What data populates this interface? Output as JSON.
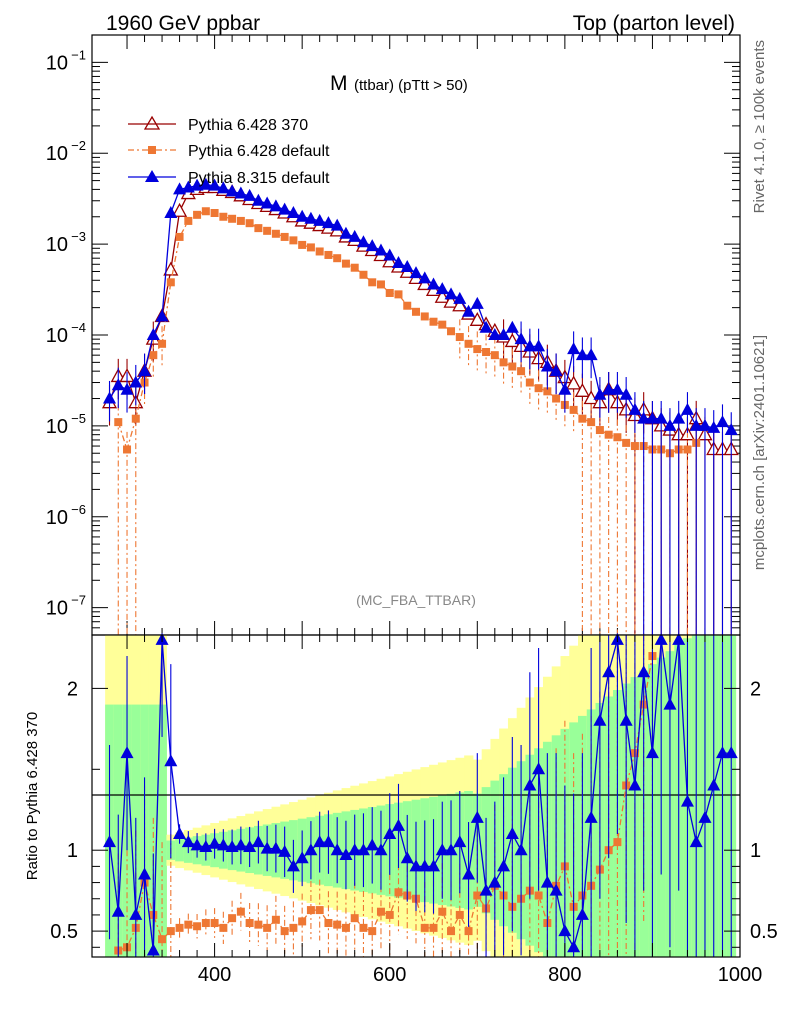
{
  "header": {
    "left": "1960 GeV ppbar",
    "right": "Top (parton level)"
  },
  "side_labels": {
    "top": "Rivet 4.1.0, ≥ 100k events",
    "bottom": "mcplots.cern.ch [arXiv:2401.10621]"
  },
  "chart_data": [
    {
      "type": "line",
      "title": "M",
      "subtitle": "(ttbar) (pTtt > 50)",
      "watermark": "(MC_FBA_TTBAR)",
      "xlabel": "",
      "ylabel": "",
      "yscale": "log",
      "xlim": [
        260,
        1000
      ],
      "ylim": [
        5e-08,
        0.2
      ],
      "ytick_labels": [
        "10^-1",
        "10^-2",
        "10^-3",
        "10^-4",
        "10^-5",
        "10^-6",
        "10^-7"
      ],
      "legend_position": "top-left",
      "series": [
        {
          "name": "Pythia 6.428 370",
          "color": "#990000",
          "marker": "open-triangle",
          "x": [
            280,
            290,
            300,
            310,
            320,
            330,
            340,
            350,
            360,
            370,
            380,
            390,
            400,
            410,
            420,
            430,
            440,
            450,
            460,
            470,
            480,
            490,
            500,
            510,
            520,
            530,
            540,
            550,
            560,
            570,
            580,
            590,
            600,
            610,
            620,
            630,
            640,
            650,
            660,
            670,
            680,
            690,
            700,
            710,
            720,
            730,
            740,
            750,
            760,
            770,
            780,
            790,
            800,
            810,
            820,
            830,
            840,
            850,
            860,
            870,
            880,
            890,
            900,
            910,
            920,
            930,
            940,
            950,
            960,
            970,
            980,
            990
          ],
          "y": [
            1.8e-05,
            3.5e-05,
            3.5e-05,
            1.8e-05,
            4e-05,
            9e-05,
            0.00016,
            0.00052,
            0.0023,
            0.0036,
            0.004,
            0.0042,
            0.0042,
            0.0039,
            0.0037,
            0.0034,
            0.0031,
            0.0028,
            0.0026,
            0.0024,
            0.0022,
            0.002,
            0.0018,
            0.0017,
            0.0016,
            0.0015,
            0.0014,
            0.0012,
            0.0011,
            0.00095,
            0.00085,
            0.00075,
            0.00064,
            0.00056,
            0.00049,
            0.00042,
            0.00036,
            0.00031,
            0.00026,
            0.00023,
            0.00021,
            0.00017,
            0.000145,
            0.00013,
            0.00011,
            9.5e-05,
            8.5e-05,
            7.5e-05,
            6.5e-05,
            5.5e-05,
            5e-05,
            4e-05,
            3.4e-05,
            2.9e-05,
            2.4e-05,
            2e-05,
            1.8e-05,
            2.5e-05,
            1.8e-05,
            1.5e-05,
            1.3e-05,
            1.5e-05,
            1.2e-05,
            1e-05,
            9e-06,
            8e-06,
            8e-06,
            1.2e-05,
            8e-06,
            5.5e-06,
            5.5e-06,
            5.5e-06
          ]
        },
        {
          "name": "Pythia 6.428 default",
          "color": "#ee7733",
          "marker": "filled-square",
          "x": [
            290,
            300,
            310,
            320,
            330,
            340,
            350,
            360,
            370,
            380,
            390,
            400,
            410,
            420,
            430,
            440,
            450,
            460,
            470,
            480,
            490,
            500,
            510,
            520,
            530,
            540,
            550,
            560,
            570,
            580,
            590,
            600,
            610,
            620,
            630,
            640,
            650,
            660,
            670,
            680,
            690,
            700,
            710,
            720,
            730,
            740,
            750,
            760,
            770,
            780,
            790,
            800,
            810,
            820,
            830,
            840,
            850,
            860,
            870,
            880,
            890,
            900,
            910,
            920,
            930,
            940,
            950
          ],
          "y": [
            1.1e-05,
            5.5e-06,
            1.2e-05,
            3e-05,
            6e-05,
            8e-05,
            0.00038,
            0.0012,
            0.0018,
            0.0021,
            0.0023,
            0.0022,
            0.002,
            0.0019,
            0.0018,
            0.0017,
            0.0015,
            0.0014,
            0.0013,
            0.0012,
            0.0011,
            0.00098,
            0.00092,
            0.00083,
            0.00076,
            0.0007,
            0.00061,
            0.00055,
            0.00046,
            0.00038,
            0.00036,
            0.00029,
            0.00028,
            0.00021,
            0.00018,
            0.00016,
            0.00014,
            0.00013,
            0.00011,
            9.5e-05,
            8e-05,
            7e-05,
            6.5e-05,
            6e-05,
            5e-05,
            4.5e-05,
            4e-05,
            3e-05,
            2.6e-05,
            2.4e-05,
            2e-05,
            1.7e-05,
            1.5e-05,
            1.2e-05,
            1.1e-05,
            9e-06,
            8e-06,
            7.5e-06,
            6.5e-06,
            6e-06,
            6e-06,
            5.5e-06,
            5.5e-06,
            5e-06,
            5.5e-06,
            5.5e-06,
            6.5e-06
          ]
        },
        {
          "name": "Pythia 8.315 default",
          "color": "#0000dd",
          "marker": "filled-triangle",
          "x": [
            280,
            290,
            300,
            310,
            320,
            330,
            340,
            350,
            360,
            370,
            380,
            390,
            400,
            410,
            420,
            430,
            440,
            450,
            460,
            470,
            480,
            490,
            500,
            510,
            520,
            530,
            540,
            550,
            560,
            570,
            580,
            590,
            600,
            610,
            620,
            630,
            640,
            650,
            660,
            670,
            680,
            690,
            700,
            710,
            720,
            730,
            740,
            750,
            760,
            770,
            780,
            790,
            800,
            810,
            820,
            830,
            840,
            850,
            860,
            870,
            880,
            890,
            900,
            910,
            920,
            930,
            940,
            950,
            960,
            970,
            980,
            990
          ],
          "y": [
            2e-05,
            2.8e-05,
            2.5e-05,
            3e-05,
            4e-05,
            0.0001,
            0.00016,
            0.0022,
            0.004,
            0.0042,
            0.0044,
            0.0045,
            0.0044,
            0.0041,
            0.0038,
            0.0036,
            0.0034,
            0.003,
            0.0028,
            0.0026,
            0.0024,
            0.0022,
            0.002,
            0.0019,
            0.0018,
            0.0017,
            0.0016,
            0.0013,
            0.0012,
            0.00105,
            0.00095,
            0.00085,
            0.00075,
            0.00062,
            0.00056,
            0.00048,
            0.00042,
            0.00036,
            0.00032,
            0.00028,
            0.00025,
            0.00018,
            0.00022,
            0.00012,
            0.0001,
            0.0001,
            0.00012,
            9e-05,
            7.5e-05,
            7.5e-05,
            4.5e-05,
            4e-05,
            2.5e-05,
            7e-05,
            6e-05,
            6e-05,
            2.2e-05,
            2.5e-05,
            2.5e-05,
            2.2e-05,
            1.5e-05,
            1.2e-05,
            1.2e-05,
            1.2e-05,
            1e-05,
            1.2e-05,
            1.5e-05,
            1e-05,
            1e-05,
            9.5e-06,
            1.1e-05,
            9e-06
          ]
        }
      ]
    },
    {
      "type": "line",
      "title": "",
      "xlabel": "",
      "ylabel": "Ratio to Pythia 6.428 370",
      "xlim": [
        260,
        1000
      ],
      "ylim": [
        0.34,
        2.33
      ],
      "xtick_labels": [
        "400",
        "600",
        "800",
        "1000"
      ],
      "ytick_labels": [
        "0.5",
        "1",
        "2"
      ],
      "reference_line": 1,
      "series": [
        {
          "name": "Pythia 6.428 default",
          "color": "#ee7733",
          "x": [
            290,
            300,
            310,
            320,
            330,
            340,
            350,
            360,
            370,
            380,
            390,
            400,
            410,
            420,
            430,
            440,
            450,
            460,
            470,
            480,
            490,
            500,
            510,
            520,
            530,
            540,
            550,
            560,
            570,
            580,
            590,
            600,
            610,
            620,
            630,
            640,
            650,
            660,
            670,
            680,
            690,
            700,
            710,
            720,
            730,
            740,
            750,
            760,
            770,
            780,
            790,
            800,
            810,
            820,
            830,
            840,
            850,
            860,
            870,
            880,
            890,
            900
          ],
          "y": [
            0.38,
            0.4,
            0.52,
            0.8,
            0.6,
            0.45,
            0.5,
            0.52,
            0.54,
            0.53,
            0.55,
            0.55,
            0.52,
            0.58,
            0.62,
            0.55,
            0.54,
            0.52,
            0.57,
            0.5,
            0.52,
            0.56,
            0.63,
            0.63,
            0.55,
            0.54,
            0.52,
            0.58,
            0.52,
            0.5,
            0.62,
            0.6,
            0.74,
            0.72,
            0.7,
            0.52,
            0.52,
            0.62,
            0.5,
            0.6,
            0.5,
            0.72,
            0.64,
            0.78,
            0.72,
            0.65,
            0.7,
            0.75,
            0.72,
            0.55,
            0.78,
            0.9,
            0.65,
            0.72,
            0.78,
            0.88,
            1.0,
            1.05,
            1.4,
            1.6,
            1.9,
            2.2
          ]
        },
        {
          "name": "Pythia 8.315 default",
          "color": "#0000dd",
          "x": [
            280,
            290,
            300,
            310,
            320,
            330,
            340,
            350,
            360,
            370,
            380,
            390,
            400,
            410,
            420,
            430,
            440,
            450,
            460,
            470,
            480,
            490,
            500,
            510,
            520,
            530,
            540,
            550,
            560,
            570,
            580,
            590,
            600,
            610,
            620,
            630,
            640,
            650,
            660,
            670,
            680,
            690,
            700,
            710,
            720,
            730,
            740,
            750,
            760,
            770,
            780,
            790,
            800,
            810,
            820,
            830,
            840,
            850,
            860,
            870,
            880,
            890,
            900,
            910,
            920,
            930,
            940,
            950,
            960,
            970,
            980,
            990
          ],
          "y": [
            1.05,
            0.62,
            1.6,
            0.6,
            0.85,
            0.38,
            2.3,
            1.55,
            1.1,
            1.05,
            1.03,
            1.02,
            1.04,
            1.03,
            1.02,
            1.03,
            1.02,
            1.05,
            1.01,
            1.01,
            0.99,
            0.9,
            0.95,
            1.0,
            1.05,
            1.05,
            1.0,
            0.97,
            1.0,
            1.0,
            1.03,
            1.0,
            1.1,
            1.15,
            0.95,
            0.9,
            0.9,
            0.9,
            1.0,
            1.0,
            1.05,
            0.85,
            1.2,
            0.75,
            0.8,
            0.9,
            1.1,
            1.0,
            1.4,
            1.5,
            0.8,
            0.75,
            0.5,
            0.4,
            0.6,
            1.2,
            1.8,
            2.1,
            2.3,
            1.8,
            1.4,
            2.1,
            1.6,
            2.3,
            1.9,
            2.3,
            1.3,
            1.05,
            1.2,
            1.4,
            1.6,
            1.6
          ]
        }
      ]
    }
  ]
}
